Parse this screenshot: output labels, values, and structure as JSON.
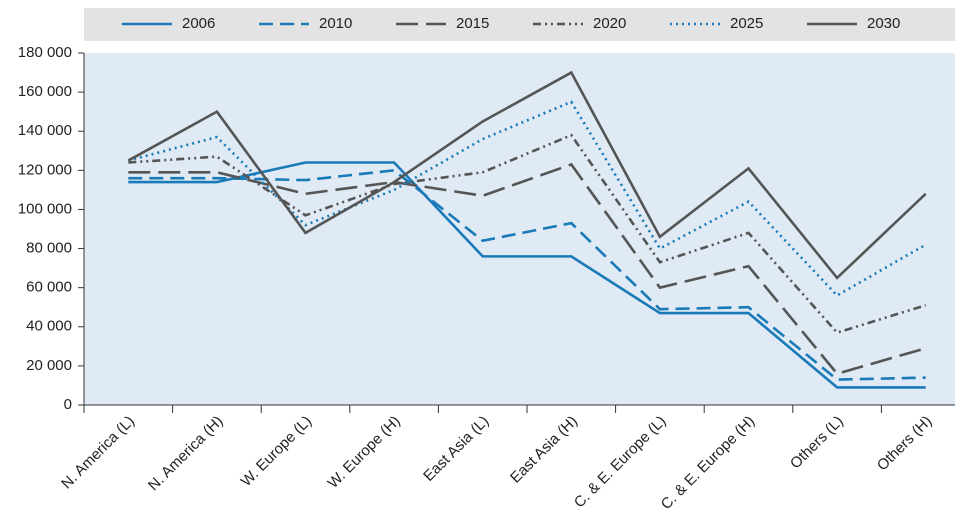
{
  "chart_data": {
    "type": "line",
    "categories": [
      "N. America (L)",
      "N. America (H)",
      "W. Europe (L)",
      "W. Europe (H)",
      "East Asia (L)",
      "East Asia  (H)",
      "C. & E. Europe (L)",
      "C. & E. Europe (H)",
      "Others (L)",
      "Others (H)"
    ],
    "series": [
      {
        "name": "2006",
        "color": "#1a7ab8",
        "dash": "solid",
        "values": [
          114000,
          114000,
          124000,
          124000,
          76000,
          76000,
          47000,
          47000,
          9000,
          9000
        ]
      },
      {
        "name": "2010",
        "color": "#1a7ab8",
        "dash": "dashed",
        "values": [
          116000,
          116000,
          115000,
          120000,
          84000,
          93000,
          49000,
          50000,
          13000,
          14000
        ]
      },
      {
        "name": "2015",
        "color": "#555555",
        "dash": "longdash",
        "values": [
          119000,
          119000,
          108000,
          114000,
          107000,
          123000,
          60000,
          71000,
          16000,
          29000
        ]
      },
      {
        "name": "2020",
        "color": "#555555",
        "dash": "dashdotdot",
        "values": [
          124000,
          127000,
          97000,
          113000,
          119000,
          138000,
          73000,
          88000,
          37000,
          51000
        ]
      },
      {
        "name": "2025",
        "color": "#1a7ab8",
        "dash": "dotted",
        "values": [
          125000,
          137000,
          92000,
          110000,
          136000,
          155000,
          80000,
          104000,
          56000,
          82000
        ]
      },
      {
        "name": "2030",
        "color": "#555555",
        "dash": "solid",
        "values": [
          125000,
          150000,
          88000,
          114000,
          145000,
          170000,
          86000,
          121000,
          65000,
          108000
        ]
      }
    ],
    "ylim": [
      0,
      180000
    ],
    "yticks": [
      0,
      {
        "value": 20000,
        "label": "20 000"
      },
      {
        "value": 40000,
        "label": "40 000"
      },
      {
        "value": 60000,
        "label": "60 000"
      },
      {
        "value": 80000,
        "label": "80 000"
      },
      {
        "value": 100000,
        "label": "100 000"
      },
      {
        "value": 120000,
        "label": "120 000"
      },
      {
        "value": 140000,
        "label": "140 000"
      },
      {
        "value": 160000,
        "label": "160 000"
      },
      {
        "value": 180000,
        "label": "180 000"
      }
    ],
    "legend": "top"
  }
}
